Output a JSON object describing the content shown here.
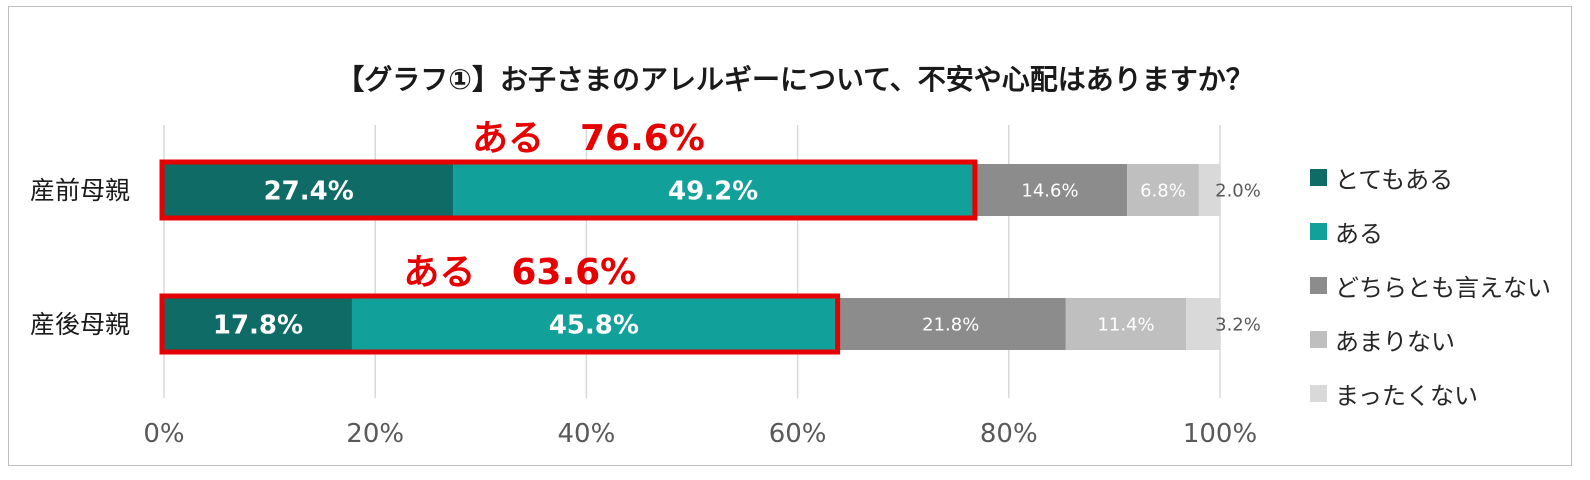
{
  "chart_data": {
    "type": "bar",
    "orientation": "horizontal",
    "stacked": true,
    "title": "【グラフ①】お子さまのアレルギーについて、不安や心配はありますか？",
    "categories": [
      "産前母親",
      "産後母親"
    ],
    "series": [
      {
        "name": "とてもある",
        "color": "#0f6b66",
        "values": [
          27.4,
          17.8
        ],
        "labels": [
          "27.4%",
          "17.8%"
        ]
      },
      {
        "name": "ある",
        "color": "#12a09a",
        "values": [
          49.2,
          45.8
        ],
        "labels": [
          "49.2%",
          "45.8%"
        ]
      },
      {
        "name": "どちらとも言えない",
        "color": "#8c8c8c",
        "values": [
          14.6,
          21.8
        ],
        "labels": [
          "14.6%",
          "21.8%"
        ]
      },
      {
        "name": "あまりない",
        "color": "#bfbfbf",
        "values": [
          6.8,
          11.4
        ],
        "labels": [
          "6.8%",
          "11.4%"
        ]
      },
      {
        "name": "まったくない",
        "color": "#d9d9d9",
        "values": [
          2.0,
          3.2
        ],
        "labels": [
          "2.0%",
          "3.2%"
        ]
      }
    ],
    "xlim": [
      0,
      100
    ],
    "xticks": [
      "0%",
      "20%",
      "40%",
      "60%",
      "80%",
      "100%"
    ],
    "grid": true,
    "legend_position": "right",
    "annotations": [
      {
        "text": "ある　76.6%",
        "category": "産前母親",
        "value": 76.6
      },
      {
        "text": "ある　63.6%",
        "category": "産後母親",
        "value": 63.6
      }
    ],
    "highlight_color": "#e60000"
  }
}
